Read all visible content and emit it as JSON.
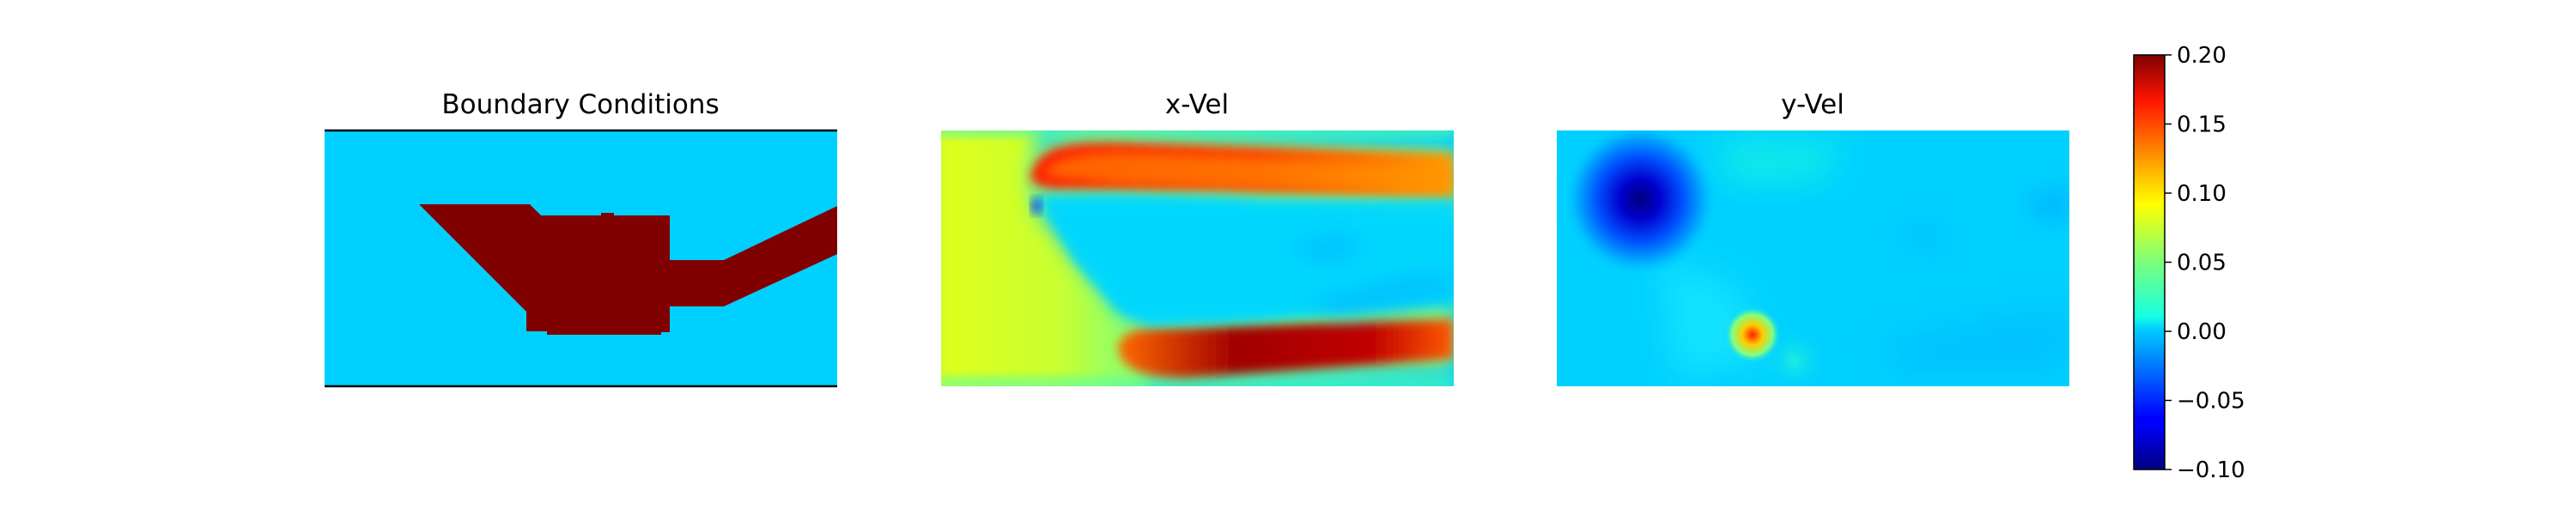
{
  "chart_data": [
    {
      "type": "heatmap",
      "title": "Boundary Conditions",
      "colormap": "jet",
      "axes": "off",
      "content": "obstacle mask (dark red) on a zero-valued field; top and bottom walls drawn as black lines"
    },
    {
      "type": "heatmap",
      "title": "x-Vel",
      "colormap": "jet",
      "axes": "off",
      "content": "x-velocity field: red jets above and below the obstacle, yellow-green inflow on the left, light-blue wake behind the obstacle"
    },
    {
      "type": "heatmap",
      "title": "y-Vel",
      "colormap": "jet",
      "axes": "off",
      "content": "y-velocity field: mostly near zero (cyan), strong negative (dark blue) vortex at the upper-left tip of the obstacle, small positive spot near the lower-left corner of the obstacle"
    }
  ],
  "colorbar": {
    "colormap": "jet",
    "vmin": -0.1,
    "vmax": 0.2,
    "ticks": [
      "0.20",
      "0.15",
      "0.10",
      "0.05",
      "0.00",
      "−0.05",
      "−0.10"
    ],
    "tick_values": [
      0.2,
      0.15,
      0.1,
      0.05,
      0.0,
      -0.05,
      -0.1
    ]
  },
  "colors": {
    "obstacle": "#800000",
    "background_zero": "#00d0ff"
  }
}
